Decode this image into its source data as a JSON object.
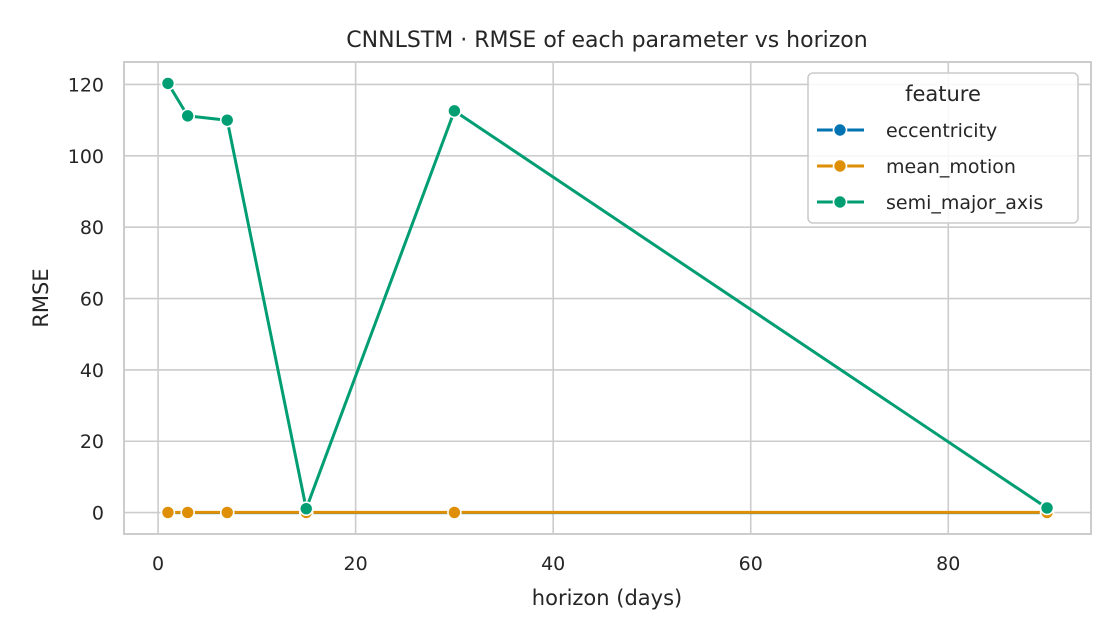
{
  "chart_data": {
    "type": "line",
    "title": "CNNLSTM · RMSE of each parameter vs horizon",
    "xlabel": "horizon (days)",
    "ylabel": "RMSE",
    "xlim": [
      -3.45,
      94.45
    ],
    "ylim": [
      -6.0,
      126.3
    ],
    "xticks": [
      0,
      20,
      40,
      60,
      80
    ],
    "yticks": [
      0,
      20,
      40,
      60,
      80,
      100,
      120
    ],
    "grid": true,
    "legend": {
      "title": "feature",
      "placement": "top-right"
    },
    "x": [
      1,
      3,
      7,
      15,
      30,
      90
    ],
    "series": [
      {
        "name": "eccentricity",
        "color": "#0173b2",
        "values": [
          0.001,
          0.001,
          0.001,
          0.001,
          0.001,
          0.001
        ]
      },
      {
        "name": "mean_motion",
        "color": "#de8f05",
        "values": [
          0.05,
          0.05,
          0.05,
          0.05,
          0.05,
          0.05
        ]
      },
      {
        "name": "semi_major_axis",
        "color": "#029e73",
        "values": [
          120.3,
          111.2,
          110.0,
          1.1,
          112.6,
          1.3
        ]
      }
    ]
  }
}
